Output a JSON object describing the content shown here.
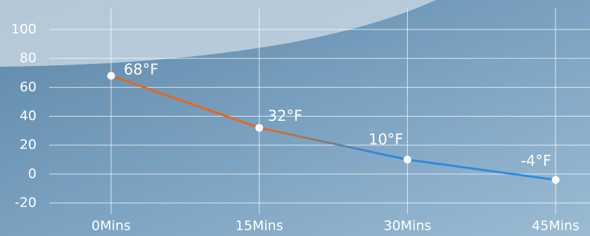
{
  "chart_data": {
    "type": "line",
    "categories": [
      "0Mins",
      "15Mins",
      "30Mins",
      "45Mins"
    ],
    "values": [
      68,
      32,
      10,
      -4
    ],
    "value_labels": [
      "68°F",
      "32°F",
      "10°F",
      "-4°F"
    ],
    "line_gradient": [
      "#e8661a",
      "#2a8be0"
    ],
    "point_color": "#ffffff",
    "ylim": [
      -20,
      100
    ],
    "yticks": [
      -20,
      0,
      20,
      40,
      60,
      80,
      100
    ],
    "grid": true
  }
}
